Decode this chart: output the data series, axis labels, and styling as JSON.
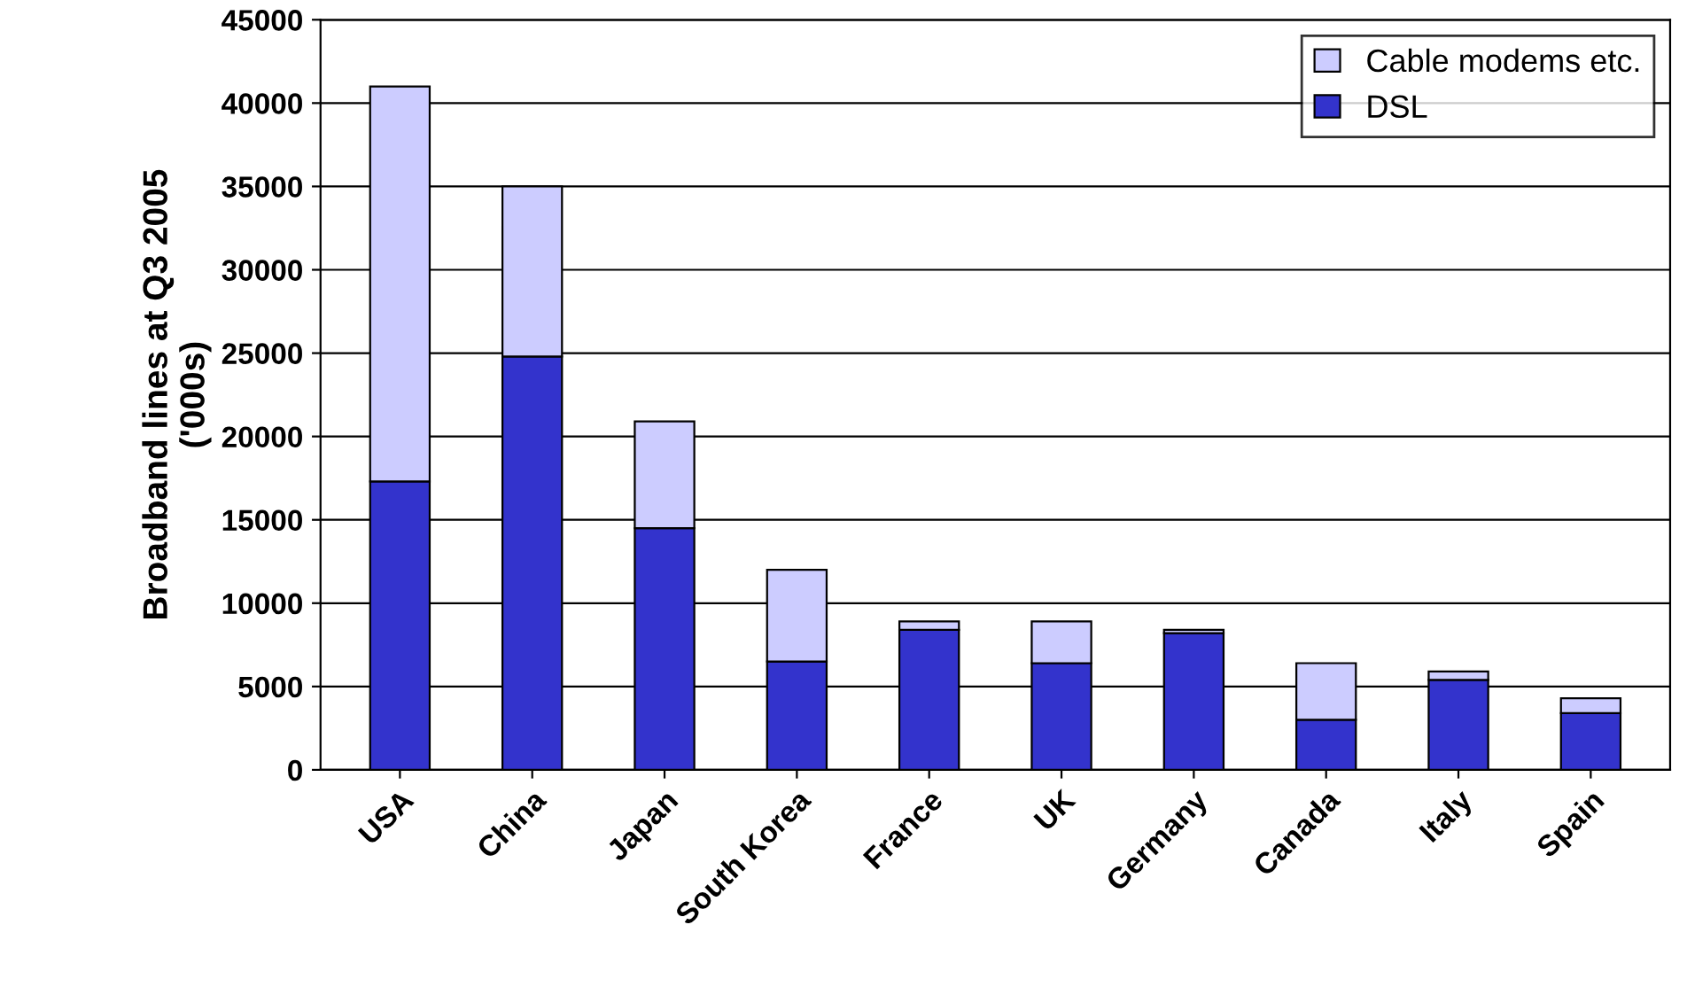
{
  "chart_data": {
    "type": "bar",
    "stacked": true,
    "ylabel": "Broadband lines at Q3 2005\n('000s)",
    "categories": [
      "USA",
      "China",
      "Japan",
      "South Korea",
      "France",
      "UK",
      "Germany",
      "Canada",
      "Italy",
      "Spain"
    ],
    "series": [
      {
        "name": "DSL",
        "color": "#3333cc",
        "values": [
          17300,
          24800,
          14500,
          6500,
          8400,
          6400,
          8200,
          3000,
          5400,
          3400
        ]
      },
      {
        "name": "Cable modems etc.",
        "color": "#ccccff",
        "values": [
          23700,
          10200,
          6400,
          5500,
          500,
          2500,
          200,
          3400,
          500,
          900
        ]
      }
    ],
    "ylim": [
      0,
      45000
    ],
    "yticks": [
      0,
      5000,
      10000,
      15000,
      20000,
      25000,
      30000,
      35000,
      40000,
      45000
    ],
    "grid": "y",
    "legend": "top right"
  }
}
